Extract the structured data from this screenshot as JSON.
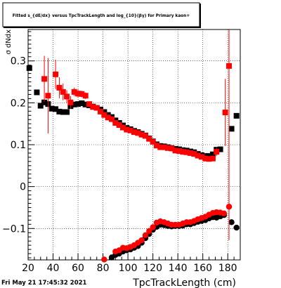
{
  "title": "Fitted s_{dE/dx} versus TpcTrackLength and log_{10}(βγ) for Primary kaon+",
  "footer_timestamp": "Fri May 21 17:45:32 2021",
  "colors": {
    "black_series": "#000000",
    "red_series": "#ff0000",
    "frame": "#000000",
    "grid": "#000000"
  },
  "chart_data": {
    "type": "scatter",
    "xlabel": "TpcTrackLength (cm)",
    "ylabel": "σ dNdx",
    "xlim": [
      20,
      190
    ],
    "ylim": [
      -0.175,
      0.375
    ],
    "grid": true,
    "x_ticks": [
      20,
      40,
      60,
      80,
      100,
      120,
      140,
      160,
      180
    ],
    "x_tick_labels": [
      "20",
      "40",
      "60",
      "80",
      "100",
      "120",
      "140",
      "160",
      "180"
    ],
    "y_ticks": [
      -0.1,
      0,
      0.1,
      0.2,
      0.3
    ],
    "y_tick_labels": [
      "−0.1",
      "0",
      "0.1",
      "0.2",
      "0.3"
    ],
    "series": [
      {
        "marker": "square",
        "color": "#000000",
        "points": [
          {
            "x": 21,
            "y": 0.283
          },
          {
            "x": 27,
            "y": 0.225
          },
          {
            "x": 30,
            "y": 0.193
          },
          {
            "x": 33,
            "y": 0.201
          },
          {
            "x": 36,
            "y": 0.197
          },
          {
            "x": 39,
            "y": 0.186
          },
          {
            "x": 42,
            "y": 0.185
          },
          {
            "x": 45,
            "y": 0.179
          },
          {
            "x": 48,
            "y": 0.178
          },
          {
            "x": 51,
            "y": 0.178
          },
          {
            "x": 54,
            "y": 0.192
          },
          {
            "x": 57,
            "y": 0.196
          },
          {
            "x": 60,
            "y": 0.197
          },
          {
            "x": 63,
            "y": 0.199
          },
          {
            "x": 66,
            "y": 0.196
          },
          {
            "x": 69,
            "y": 0.194
          },
          {
            "x": 72,
            "y": 0.191
          },
          {
            "x": 75,
            "y": 0.188
          },
          {
            "x": 78,
            "y": 0.184
          },
          {
            "x": 81,
            "y": 0.178
          },
          {
            "x": 84,
            "y": 0.171
          },
          {
            "x": 87,
            "y": 0.166
          },
          {
            "x": 90,
            "y": 0.158
          },
          {
            "x": 93,
            "y": 0.152
          },
          {
            "x": 96,
            "y": 0.146
          },
          {
            "x": 99,
            "y": 0.14
          },
          {
            "x": 102,
            "y": 0.137
          },
          {
            "x": 105,
            "y": 0.133
          },
          {
            "x": 108,
            "y": 0.13
          },
          {
            "x": 111,
            "y": 0.126
          },
          {
            "x": 114,
            "y": 0.122
          },
          {
            "x": 117,
            "y": 0.115
          },
          {
            "x": 120,
            "y": 0.108
          },
          {
            "x": 123,
            "y": 0.101
          },
          {
            "x": 126,
            "y": 0.097
          },
          {
            "x": 129,
            "y": 0.096
          },
          {
            "x": 132,
            "y": 0.094
          },
          {
            "x": 135,
            "y": 0.092
          },
          {
            "x": 138,
            "y": 0.09
          },
          {
            "x": 141,
            "y": 0.089
          },
          {
            "x": 144,
            "y": 0.087
          },
          {
            "x": 147,
            "y": 0.086
          },
          {
            "x": 150,
            "y": 0.084
          },
          {
            "x": 153,
            "y": 0.082
          },
          {
            "x": 156,
            "y": 0.078
          },
          {
            "x": 159,
            "y": 0.075
          },
          {
            "x": 162,
            "y": 0.073
          },
          {
            "x": 165,
            "y": 0.073
          },
          {
            "x": 168,
            "y": 0.077
          },
          {
            "x": 171,
            "y": 0.088
          },
          {
            "x": 174,
            "y": 0.089
          },
          {
            "x": 183,
            "y": 0.138
          },
          {
            "x": 187,
            "y": 0.169
          }
        ]
      },
      {
        "marker": "square",
        "color": "#ff0000",
        "points": [
          {
            "x": 33,
            "y": 0.257,
            "err": 0.055
          },
          {
            "x": 36,
            "y": 0.217,
            "err": 0.09
          },
          {
            "x": 42,
            "y": 0.268,
            "err": 0.035
          },
          {
            "x": 45,
            "y": 0.236,
            "err": 0.025
          },
          {
            "x": 48,
            "y": 0.226,
            "err": 0.02
          },
          {
            "x": 51,
            "y": 0.215,
            "err": 0.015
          },
          {
            "x": 54,
            "y": 0.201,
            "err": 0.015
          },
          {
            "x": 57,
            "y": 0.226,
            "err": 0.01
          },
          {
            "x": 60,
            "y": 0.222,
            "err": 0.01
          },
          {
            "x": 63,
            "y": 0.221,
            "err": 0.008
          },
          {
            "x": 66,
            "y": 0.217,
            "err": 0.008
          },
          {
            "x": 69,
            "y": 0.197
          },
          {
            "x": 72,
            "y": 0.19
          },
          {
            "x": 75,
            "y": 0.188
          },
          {
            "x": 78,
            "y": 0.179
          },
          {
            "x": 81,
            "y": 0.171
          },
          {
            "x": 84,
            "y": 0.165
          },
          {
            "x": 87,
            "y": 0.161
          },
          {
            "x": 90,
            "y": 0.152
          },
          {
            "x": 93,
            "y": 0.147
          },
          {
            "x": 96,
            "y": 0.141
          },
          {
            "x": 99,
            "y": 0.136
          },
          {
            "x": 102,
            "y": 0.134
          },
          {
            "x": 105,
            "y": 0.13
          },
          {
            "x": 108,
            "y": 0.128
          },
          {
            "x": 111,
            "y": 0.124
          },
          {
            "x": 114,
            "y": 0.121
          },
          {
            "x": 117,
            "y": 0.114
          },
          {
            "x": 120,
            "y": 0.107
          },
          {
            "x": 123,
            "y": 0.098
          },
          {
            "x": 126,
            "y": 0.094
          },
          {
            "x": 129,
            "y": 0.094
          },
          {
            "x": 132,
            "y": 0.092
          },
          {
            "x": 135,
            "y": 0.091
          },
          {
            "x": 138,
            "y": 0.086
          },
          {
            "x": 141,
            "y": 0.085
          },
          {
            "x": 144,
            "y": 0.083
          },
          {
            "x": 147,
            "y": 0.082
          },
          {
            "x": 150,
            "y": 0.08
          },
          {
            "x": 153,
            "y": 0.078
          },
          {
            "x": 156,
            "y": 0.074
          },
          {
            "x": 159,
            "y": 0.071
          },
          {
            "x": 162,
            "y": 0.067
          },
          {
            "x": 165,
            "y": 0.066
          },
          {
            "x": 168,
            "y": 0.067
          },
          {
            "x": 171,
            "y": 0.083,
            "err": 0.01
          },
          {
            "x": 178,
            "y": 0.177,
            "err": 0.08
          },
          {
            "x": 181,
            "y": 0.288,
            "err": 0.35
          }
        ]
      },
      {
        "marker": "circle",
        "color": "#000000",
        "points": [
          {
            "x": 87,
            "y": -0.169
          },
          {
            "x": 90,
            "y": -0.163
          },
          {
            "x": 93,
            "y": -0.16
          },
          {
            "x": 96,
            "y": -0.155
          },
          {
            "x": 99,
            "y": -0.152
          },
          {
            "x": 102,
            "y": -0.15
          },
          {
            "x": 105,
            "y": -0.146
          },
          {
            "x": 108,
            "y": -0.142
          },
          {
            "x": 111,
            "y": -0.134
          },
          {
            "x": 114,
            "y": -0.123
          },
          {
            "x": 117,
            "y": -0.113
          },
          {
            "x": 120,
            "y": -0.103
          },
          {
            "x": 123,
            "y": -0.096
          },
          {
            "x": 126,
            "y": -0.091
          },
          {
            "x": 129,
            "y": -0.092
          },
          {
            "x": 132,
            "y": -0.094
          },
          {
            "x": 135,
            "y": -0.095
          },
          {
            "x": 138,
            "y": -0.094
          },
          {
            "x": 141,
            "y": -0.094
          },
          {
            "x": 144,
            "y": -0.093
          },
          {
            "x": 147,
            "y": -0.09
          },
          {
            "x": 150,
            "y": -0.09
          },
          {
            "x": 153,
            "y": -0.087
          },
          {
            "x": 156,
            "y": -0.084
          },
          {
            "x": 159,
            "y": -0.082
          },
          {
            "x": 162,
            "y": -0.08
          },
          {
            "x": 165,
            "y": -0.076
          },
          {
            "x": 168,
            "y": -0.073
          },
          {
            "x": 171,
            "y": -0.074
          },
          {
            "x": 174,
            "y": -0.071
          },
          {
            "x": 177,
            "y": -0.068
          },
          {
            "x": 183,
            "y": -0.085
          },
          {
            "x": 187,
            "y": -0.098
          }
        ]
      },
      {
        "marker": "circle",
        "color": "#ff0000",
        "points": [
          {
            "x": 81,
            "y": -0.174
          },
          {
            "x": 90,
            "y": -0.155
          },
          {
            "x": 93,
            "y": -0.152
          },
          {
            "x": 96,
            "y": -0.146
          },
          {
            "x": 99,
            "y": -0.147
          },
          {
            "x": 102,
            "y": -0.144
          },
          {
            "x": 105,
            "y": -0.14
          },
          {
            "x": 108,
            "y": -0.134
          },
          {
            "x": 111,
            "y": -0.128
          },
          {
            "x": 114,
            "y": -0.116
          },
          {
            "x": 117,
            "y": -0.106
          },
          {
            "x": 120,
            "y": -0.097
          },
          {
            "x": 123,
            "y": -0.086
          },
          {
            "x": 126,
            "y": -0.083
          },
          {
            "x": 129,
            "y": -0.085
          },
          {
            "x": 132,
            "y": -0.088
          },
          {
            "x": 135,
            "y": -0.091
          },
          {
            "x": 138,
            "y": -0.091
          },
          {
            "x": 141,
            "y": -0.091
          },
          {
            "x": 144,
            "y": -0.088
          },
          {
            "x": 147,
            "y": -0.085
          },
          {
            "x": 150,
            "y": -0.085
          },
          {
            "x": 153,
            "y": -0.082
          },
          {
            "x": 156,
            "y": -0.078
          },
          {
            "x": 159,
            "y": -0.075
          },
          {
            "x": 162,
            "y": -0.072
          },
          {
            "x": 165,
            "y": -0.067
          },
          {
            "x": 168,
            "y": -0.063
          },
          {
            "x": 171,
            "y": -0.061
          },
          {
            "x": 174,
            "y": -0.062
          },
          {
            "x": 177,
            "y": -0.064
          },
          {
            "x": 181,
            "y": -0.048,
            "err": 0.08
          }
        ]
      }
    ]
  }
}
